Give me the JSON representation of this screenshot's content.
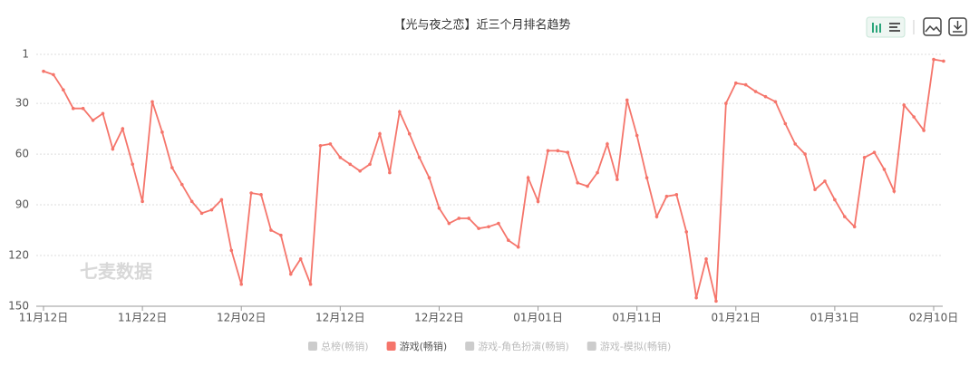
{
  "chart_data": {
    "type": "line",
    "title": "【光与夜之恋】近三个月排名趋势",
    "watermark": "七麦数据",
    "categories": [
      "11月12日",
      null,
      null,
      null,
      null,
      null,
      null,
      null,
      null,
      null,
      "11月22日",
      null,
      null,
      null,
      null,
      null,
      null,
      null,
      null,
      null,
      "12月02日",
      null,
      null,
      null,
      null,
      null,
      null,
      null,
      null,
      null,
      "12月12日",
      null,
      null,
      null,
      null,
      null,
      null,
      null,
      null,
      null,
      "12月22日",
      null,
      null,
      null,
      null,
      null,
      null,
      null,
      null,
      null,
      "01月01日",
      null,
      null,
      null,
      null,
      null,
      null,
      null,
      null,
      null,
      "01月11日",
      null,
      null,
      null,
      null,
      null,
      null,
      null,
      null,
      null,
      "01月21日",
      null,
      null,
      null,
      null,
      null,
      null,
      null,
      null,
      null,
      "01月31日",
      null,
      null,
      null,
      null,
      null,
      null,
      null,
      null,
      null,
      "02月10日",
      null
    ],
    "series": [
      {
        "name": "游戏(畅销)",
        "color": "#f5756b",
        "values": [
          11,
          13,
          22,
          33,
          33,
          40,
          36,
          57,
          45,
          66,
          88,
          29,
          47,
          68,
          78,
          88,
          95,
          93,
          87,
          117,
          137,
          83,
          84,
          105,
          108,
          131,
          122,
          137,
          55,
          54,
          62,
          66,
          70,
          66,
          48,
          71,
          35,
          48,
          62,
          74,
          92,
          101,
          98,
          98,
          104,
          103,
          101,
          111,
          115,
          74,
          88,
          58,
          58,
          59,
          77,
          79,
          71,
          54,
          75,
          28,
          49,
          74,
          97,
          85,
          84,
          106,
          145,
          122,
          147,
          30,
          18,
          19,
          23,
          26,
          29,
          42,
          54,
          60,
          81,
          76,
          87,
          97,
          103,
          62,
          59,
          69,
          82,
          31,
          38,
          46,
          4,
          5
        ]
      }
    ],
    "legend": [
      {
        "name": "总榜(畅销)",
        "color": "#cccccc"
      },
      {
        "name": "游戏(畅销)",
        "color": "#f5756b"
      },
      {
        "name": "游戏-角色扮演(畅销)",
        "color": "#cccccc"
      },
      {
        "name": "游戏-模拟(畅销)",
        "color": "#cccccc"
      }
    ],
    "ylim": [
      150,
      1
    ],
    "yticks": [
      1,
      30,
      60,
      90,
      120,
      150
    ],
    "grid": true
  }
}
